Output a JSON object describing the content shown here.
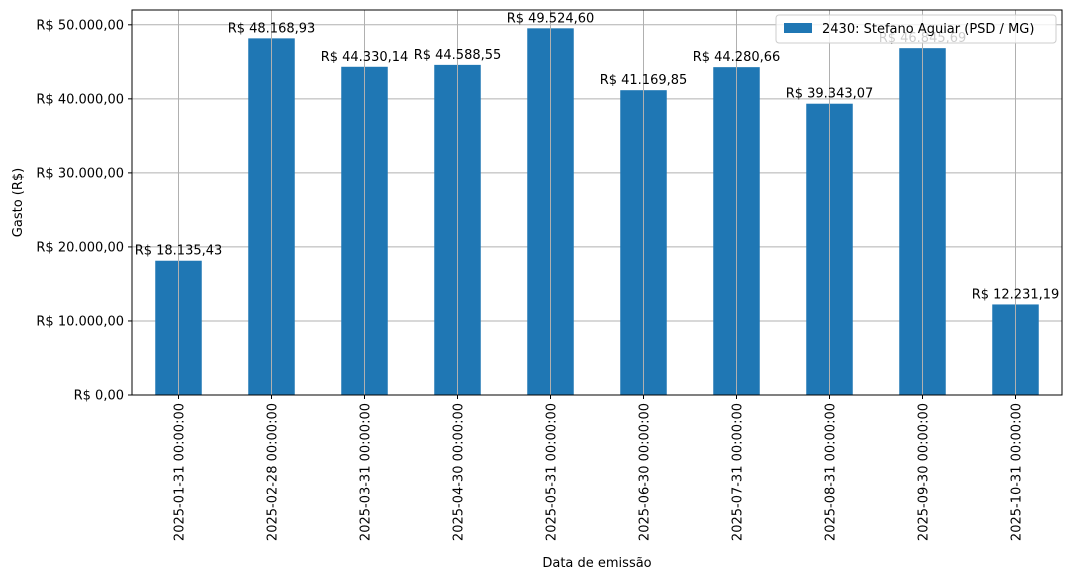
{
  "chart_data": {
    "type": "bar",
    "title": "",
    "xlabel": "Data de emissão",
    "ylabel": "Gasto (R$)",
    "categories": [
      "2025-01-31 00:00:00",
      "2025-02-28 00:00:00",
      "2025-03-31 00:00:00",
      "2025-04-30 00:00:00",
      "2025-05-31 00:00:00",
      "2025-06-30 00:00:00",
      "2025-07-31 00:00:00",
      "2025-08-31 00:00:00",
      "2025-09-30 00:00:00",
      "2025-10-31 00:00:00"
    ],
    "series": [
      {
        "name": "2430: Stefano Aguiar (PSD / MG)",
        "color": "#1f77b4",
        "values": [
          18135.43,
          48168.93,
          44330.14,
          44588.55,
          49524.6,
          41169.85,
          44280.66,
          39343.07,
          46845.69,
          12231.19
        ],
        "labels": [
          "R$ 18.135,43",
          "R$ 48.168,93",
          "R$ 44.330,14",
          "R$ 44.588,55",
          "R$ 49.524,60",
          "R$ 41.169,85",
          "R$ 44.280,66",
          "R$ 39.343,07",
          "R$ 46.845,69",
          "R$ 12.231,19"
        ]
      }
    ],
    "yticks": [
      0,
      10000,
      20000,
      30000,
      40000,
      50000
    ],
    "ytick_labels": [
      "R$ 0,00",
      "R$ 10.000,00",
      "R$ 20.000,00",
      "R$ 30.000,00",
      "R$ 40.000,00",
      "R$ 50.000,00"
    ],
    "ylim": [
      0,
      52000
    ],
    "grid": true,
    "legend_position": "top-right"
  }
}
